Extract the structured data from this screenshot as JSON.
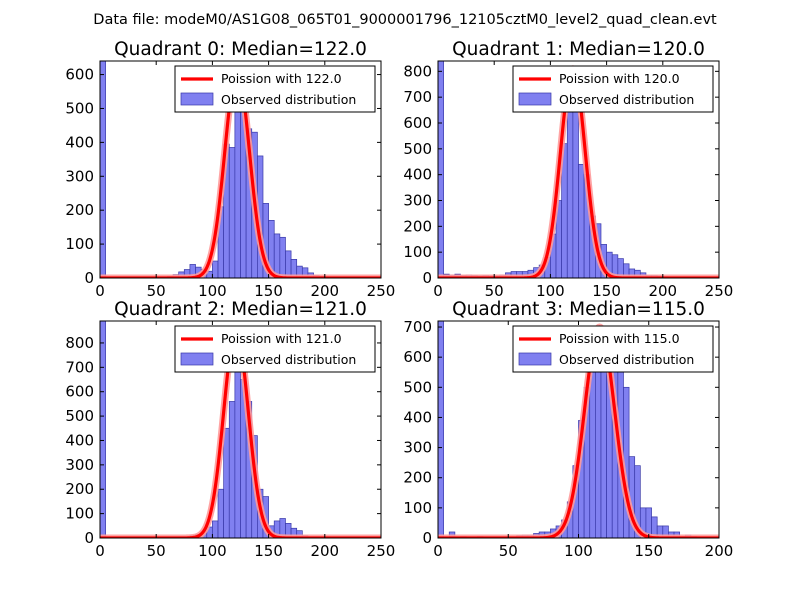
{
  "figure_title": "Data file: modeM0/AS1G08_065T01_9000001796_12105cztM0_level2_quad_clean.evt",
  "colors": {
    "bar_fill": "#8080f0",
    "bar_edge": "#3838a8",
    "fit_line": "#ff0000",
    "fit_glow": "#ff9a9a",
    "legend_border": "#000000"
  },
  "chart_data": [
    {
      "type": "bar",
      "title": "Quadrant 0: Median=122.0",
      "xlabel": "",
      "ylabel": "",
      "xlim": [
        0,
        250
      ],
      "ylim": [
        0,
        640
      ],
      "x_ticks": [
        0,
        50,
        100,
        150,
        200,
        250
      ],
      "y_ticks": [
        0,
        100,
        200,
        300,
        400,
        500,
        600
      ],
      "legend": {
        "position": "top-right",
        "line_label": "Poission with 122.0",
        "bar_label": "Observed distribution"
      },
      "poisson_mean": 122.0,
      "poisson_peak": 610,
      "bins": [
        [
          0,
          5,
          640
        ],
        [
          60,
          65,
          5
        ],
        [
          65,
          70,
          10
        ],
        [
          70,
          75,
          18
        ],
        [
          75,
          80,
          25
        ],
        [
          80,
          85,
          40
        ],
        [
          85,
          90,
          32
        ],
        [
          90,
          95,
          25
        ],
        [
          95,
          100,
          20
        ],
        [
          100,
          105,
          50
        ],
        [
          105,
          110,
          210
        ],
        [
          110,
          115,
          395
        ],
        [
          115,
          120,
          385
        ],
        [
          120,
          125,
          560
        ],
        [
          125,
          130,
          560
        ],
        [
          130,
          135,
          440
        ],
        [
          135,
          140,
          430
        ],
        [
          140,
          145,
          360
        ],
        [
          145,
          150,
          220
        ],
        [
          150,
          155,
          170
        ],
        [
          155,
          160,
          130
        ],
        [
          160,
          165,
          120
        ],
        [
          165,
          170,
          80
        ],
        [
          170,
          175,
          55
        ],
        [
          175,
          180,
          35
        ],
        [
          180,
          185,
          30
        ],
        [
          185,
          190,
          15
        ],
        [
          190,
          195,
          8
        ],
        [
          195,
          200,
          5
        ]
      ]
    },
    {
      "type": "bar",
      "title": "Quadrant 1: Median=120.0",
      "xlabel": "",
      "ylabel": "",
      "xlim": [
        0,
        250
      ],
      "ylim": [
        0,
        840
      ],
      "x_ticks": [
        0,
        50,
        100,
        150,
        200,
        250
      ],
      "y_ticks": [
        0,
        100,
        200,
        300,
        400,
        500,
        600,
        700,
        800
      ],
      "legend": {
        "position": "top-right",
        "line_label": "Poission with 120.0",
        "bar_label": "Observed distribution"
      },
      "poisson_mean": 120.0,
      "poisson_peak": 810,
      "bins": [
        [
          0,
          5,
          840
        ],
        [
          5,
          10,
          15
        ],
        [
          10,
          15,
          12
        ],
        [
          15,
          20,
          15
        ],
        [
          20,
          25,
          10
        ],
        [
          25,
          30,
          12
        ],
        [
          30,
          35,
          10
        ],
        [
          35,
          40,
          8
        ],
        [
          40,
          45,
          10
        ],
        [
          45,
          50,
          8
        ],
        [
          50,
          55,
          8
        ],
        [
          55,
          60,
          12
        ],
        [
          60,
          65,
          20
        ],
        [
          65,
          70,
          25
        ],
        [
          70,
          75,
          25
        ],
        [
          75,
          80,
          25
        ],
        [
          80,
          85,
          30
        ],
        [
          85,
          90,
          40
        ],
        [
          90,
          95,
          50
        ],
        [
          95,
          100,
          80
        ],
        [
          100,
          105,
          170
        ],
        [
          105,
          110,
          300
        ],
        [
          110,
          115,
          520
        ],
        [
          115,
          120,
          690
        ],
        [
          120,
          125,
          690
        ],
        [
          125,
          130,
          440
        ],
        [
          130,
          135,
          400
        ],
        [
          135,
          140,
          240
        ],
        [
          140,
          145,
          210
        ],
        [
          145,
          150,
          130
        ],
        [
          150,
          155,
          100
        ],
        [
          155,
          160,
          90
        ],
        [
          160,
          165,
          75
        ],
        [
          165,
          170,
          55
        ],
        [
          170,
          175,
          35
        ],
        [
          175,
          180,
          30
        ],
        [
          180,
          185,
          20
        ],
        [
          185,
          190,
          10
        ],
        [
          190,
          195,
          10
        ],
        [
          195,
          200,
          8
        ],
        [
          200,
          205,
          5
        ]
      ]
    },
    {
      "type": "bar",
      "title": "Quadrant 2: Median=121.0",
      "xlabel": "",
      "ylabel": "",
      "xlim": [
        0,
        250
      ],
      "ylim": [
        0,
        890
      ],
      "x_ticks": [
        0,
        50,
        100,
        150,
        200,
        250
      ],
      "y_ticks": [
        0,
        100,
        200,
        300,
        400,
        500,
        600,
        700,
        800
      ],
      "legend": {
        "position": "top-right",
        "line_label": "Poission with 121.0",
        "bar_label": "Observed distribution"
      },
      "poisson_mean": 121.0,
      "poisson_peak": 850,
      "bins": [
        [
          0,
          5,
          890
        ],
        [
          70,
          75,
          5
        ],
        [
          75,
          80,
          5
        ],
        [
          80,
          85,
          10
        ],
        [
          85,
          90,
          15
        ],
        [
          90,
          95,
          25
        ],
        [
          95,
          100,
          45
        ],
        [
          100,
          105,
          70
        ],
        [
          105,
          110,
          200
        ],
        [
          110,
          115,
          450
        ],
        [
          115,
          120,
          560
        ],
        [
          120,
          125,
          750
        ],
        [
          125,
          130,
          650
        ],
        [
          130,
          135,
          560
        ],
        [
          135,
          140,
          420
        ],
        [
          140,
          145,
          200
        ],
        [
          145,
          150,
          170
        ],
        [
          150,
          155,
          50
        ],
        [
          155,
          160,
          70
        ],
        [
          160,
          165,
          80
        ],
        [
          165,
          170,
          60
        ],
        [
          170,
          175,
          40
        ],
        [
          175,
          180,
          30
        ],
        [
          180,
          185,
          10
        ],
        [
          185,
          190,
          5
        ],
        [
          190,
          195,
          5
        ],
        [
          200,
          205,
          5
        ]
      ]
    },
    {
      "type": "bar",
      "title": "Quadrant 3: Median=115.0",
      "xlabel": "",
      "ylabel": "",
      "xlim": [
        0,
        200
      ],
      "ylim": [
        0,
        720
      ],
      "x_ticks": [
        0,
        50,
        100,
        150,
        200
      ],
      "y_ticks": [
        0,
        100,
        200,
        300,
        400,
        500,
        600,
        700
      ],
      "legend": {
        "position": "top-right",
        "line_label": "Poission with 115.0",
        "bar_label": "Observed distribution"
      },
      "poisson_mean": 115.0,
      "poisson_peak": 700,
      "bins": [
        [
          0,
          4,
          720
        ],
        [
          8,
          12,
          20
        ],
        [
          16,
          20,
          5
        ],
        [
          28,
          32,
          5
        ],
        [
          56,
          60,
          8
        ],
        [
          60,
          64,
          10
        ],
        [
          64,
          68,
          10
        ],
        [
          68,
          72,
          15
        ],
        [
          72,
          76,
          20
        ],
        [
          76,
          80,
          20
        ],
        [
          80,
          84,
          30
        ],
        [
          84,
          88,
          40
        ],
        [
          88,
          92,
          60
        ],
        [
          92,
          96,
          120
        ],
        [
          96,
          100,
          240
        ],
        [
          100,
          104,
          390
        ],
        [
          104,
          108,
          500
        ],
        [
          108,
          112,
          550
        ],
        [
          112,
          116,
          650
        ],
        [
          116,
          120,
          670
        ],
        [
          120,
          124,
          650
        ],
        [
          124,
          128,
          580
        ],
        [
          128,
          132,
          560
        ],
        [
          132,
          136,
          500
        ],
        [
          136,
          140,
          270
        ],
        [
          140,
          144,
          240
        ],
        [
          144,
          148,
          100
        ],
        [
          148,
          152,
          100
        ],
        [
          152,
          156,
          70
        ],
        [
          156,
          160,
          40
        ],
        [
          160,
          164,
          40
        ],
        [
          164,
          168,
          20
        ],
        [
          168,
          172,
          20
        ],
        [
          172,
          176,
          5
        ],
        [
          176,
          180,
          10
        ],
        [
          180,
          184,
          5
        ]
      ]
    }
  ]
}
